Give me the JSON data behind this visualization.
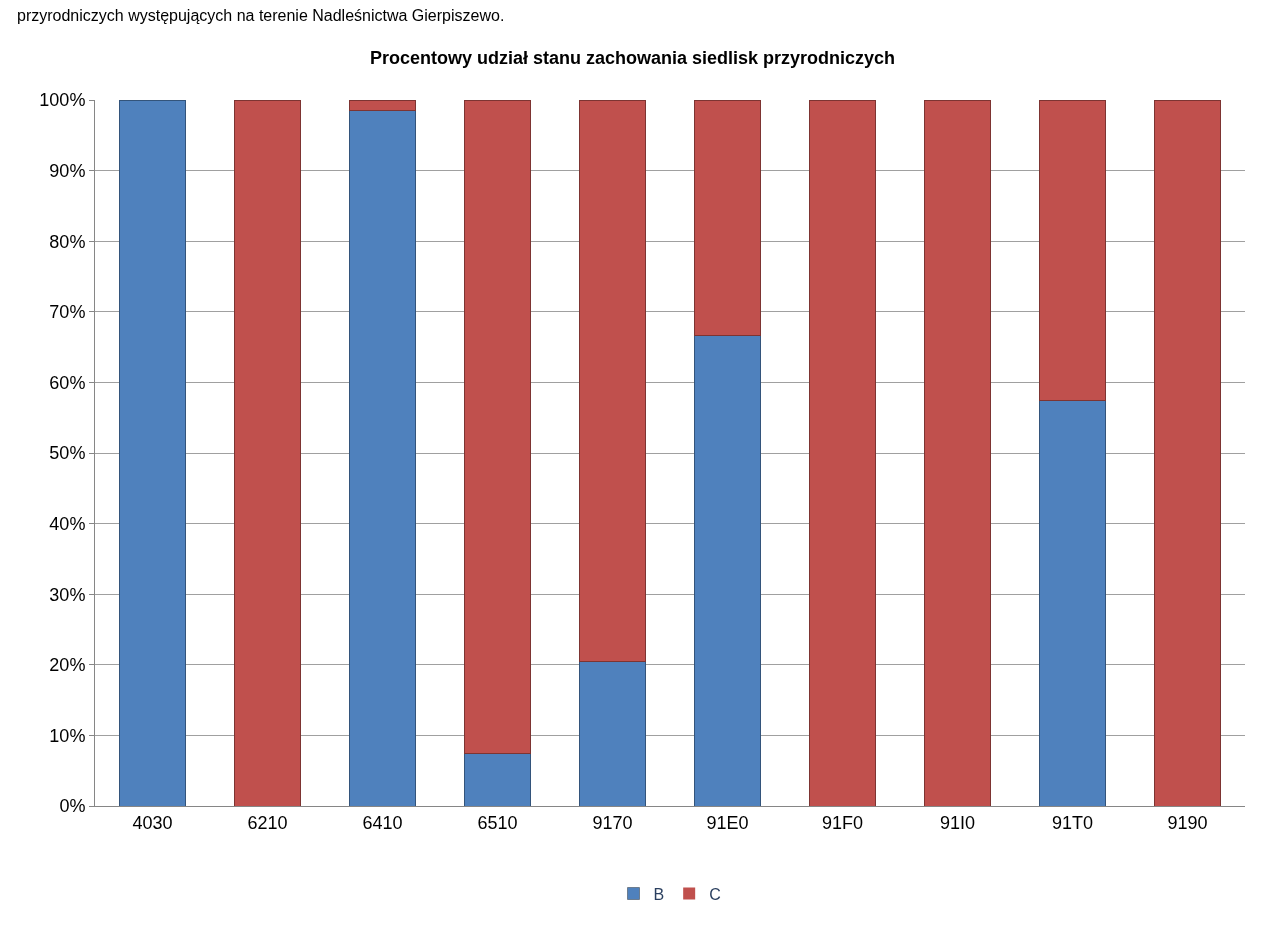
{
  "chart_data": {
    "type": "bar",
    "stacked": true,
    "title": "Procentowy udział stanu zachowania siedlisk przyrodniczych",
    "annotations": [
      "przyrodniczych występujących na terenie Nadleśnictwa Gierpiszewo."
    ],
    "categories": [
      "4030",
      "6210",
      "6410",
      "6510",
      "9170",
      "91E0",
      "91F0",
      "91I0",
      "91T0",
      "9190"
    ],
    "series": [
      {
        "name": "B",
        "color": "#4f81bd",
        "values": [
          100,
          0,
          98.5,
          7.4,
          20.4,
          66.6,
          0,
          0,
          57.4,
          0
        ]
      },
      {
        "name": "C",
        "color": "#c0504d",
        "values": [
          0,
          100,
          1.5,
          92.6,
          79.6,
          33.4,
          100,
          100,
          42.6,
          100
        ]
      }
    ],
    "ylim": [
      0,
      100
    ],
    "yticks": [
      {
        "value": 0,
        "label": "0%"
      },
      {
        "value": 10,
        "label": "10%"
      },
      {
        "value": 20,
        "label": "20%"
      },
      {
        "value": 30,
        "label": "30%"
      },
      {
        "value": 40,
        "label": "40%"
      },
      {
        "value": 50,
        "label": "50%"
      },
      {
        "value": 60,
        "label": "60%"
      },
      {
        "value": 70,
        "label": "70%"
      },
      {
        "value": 80,
        "label": "80%"
      },
      {
        "value": 90,
        "label": "90%"
      },
      {
        "value": 100,
        "label": "100%"
      }
    ],
    "grid": "y",
    "legend": "bottom"
  }
}
